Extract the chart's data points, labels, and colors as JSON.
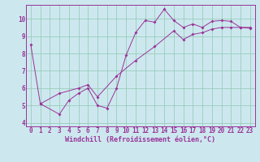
{
  "xlabel": "Windchill (Refroidissement éolien,°C)",
  "bg_color": "#cce8ee",
  "line_color": "#993399",
  "grid_color": "#99ccbb",
  "xlim": [
    -0.5,
    23.5
  ],
  "ylim": [
    3.8,
    10.8
  ],
  "xticks": [
    0,
    1,
    2,
    3,
    4,
    5,
    6,
    7,
    8,
    9,
    10,
    11,
    12,
    13,
    14,
    15,
    16,
    17,
    18,
    19,
    20,
    21,
    22,
    23
  ],
  "yticks": [
    4,
    5,
    6,
    7,
    8,
    9,
    10
  ],
  "series1_x": [
    0,
    1,
    3,
    4,
    5,
    6,
    7,
    8,
    9,
    10,
    11,
    12,
    13,
    14,
    15,
    16,
    17,
    18,
    19,
    20,
    21,
    22,
    23
  ],
  "series1_y": [
    8.5,
    5.1,
    4.5,
    5.3,
    5.7,
    6.0,
    5.0,
    4.85,
    6.0,
    7.9,
    9.2,
    9.9,
    9.8,
    10.55,
    9.9,
    9.5,
    9.7,
    9.5,
    9.85,
    9.9,
    9.85,
    9.5,
    9.5
  ],
  "series2_x": [
    1,
    3,
    5,
    6,
    7,
    9,
    11,
    13,
    15,
    16,
    17,
    18,
    19,
    20,
    21,
    22,
    23
  ],
  "series2_y": [
    5.1,
    5.7,
    6.0,
    6.2,
    5.5,
    6.7,
    7.6,
    8.4,
    9.3,
    8.8,
    9.1,
    9.2,
    9.4,
    9.5,
    9.5,
    9.5,
    9.45
  ]
}
